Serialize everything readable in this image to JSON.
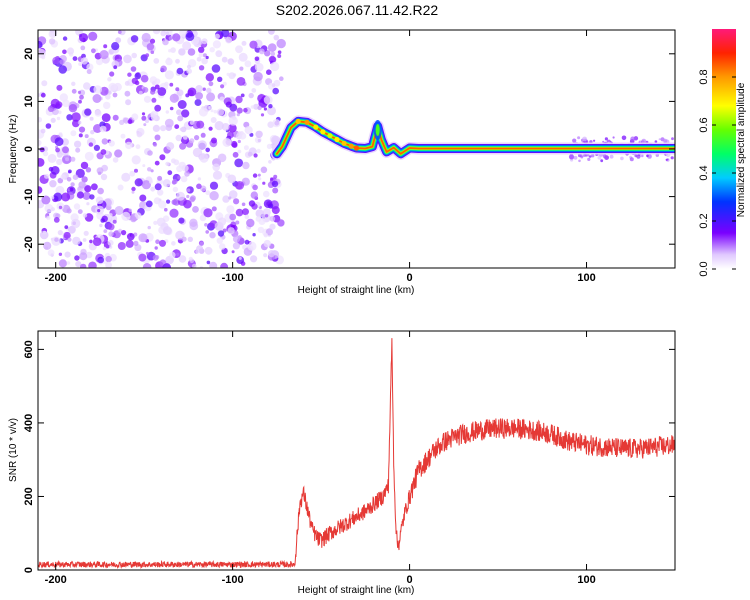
{
  "title": "S202.2026.067.11.42.R22",
  "chart_data": [
    {
      "type": "heatmap",
      "xlabel": "Height of straight line (km)",
      "ylabel": "Frequency (Hz)",
      "xlim": [
        -210,
        150
      ],
      "ylim": [
        -25,
        25
      ],
      "xticks": [
        -200,
        -100,
        0,
        100
      ],
      "yticks": [
        -20,
        -10,
        0,
        10,
        20
      ],
      "colorbar": {
        "label": "Normalized spectral amplitude",
        "range": [
          0,
          1
        ],
        "ticks": [
          "0.0",
          "0.2",
          "0.4",
          "0.6",
          "0.8"
        ]
      },
      "noise_region_x": [
        -210,
        -72
      ],
      "ridge": [
        {
          "x": -75,
          "y": -1.0,
          "amp": 0.25
        },
        {
          "x": -72,
          "y": 0.5,
          "amp": 0.35
        },
        {
          "x": -67,
          "y": 4.5,
          "amp": 0.45
        },
        {
          "x": -63,
          "y": 5.8,
          "amp": 0.75
        },
        {
          "x": -58,
          "y": 5.6,
          "amp": 0.8
        },
        {
          "x": -53,
          "y": 4.6,
          "amp": 0.7
        },
        {
          "x": -49,
          "y": 3.6,
          "amp": 0.7
        },
        {
          "x": -45,
          "y": 2.8,
          "amp": 0.65
        },
        {
          "x": -41,
          "y": 2.0,
          "amp": 0.7
        },
        {
          "x": -37,
          "y": 1.2,
          "amp": 0.75
        },
        {
          "x": -33,
          "y": 0.6,
          "amp": 0.8
        },
        {
          "x": -30,
          "y": 0.2,
          "amp": 0.85
        },
        {
          "x": -25,
          "y": 0.1,
          "amp": 0.85
        },
        {
          "x": -21,
          "y": 0.5,
          "amp": 0.5
        },
        {
          "x": -18,
          "y": 4.8,
          "amp": 0.45
        },
        {
          "x": -16,
          "y": 2.0,
          "amp": 0.5
        },
        {
          "x": -13,
          "y": -0.6,
          "amp": 0.55
        },
        {
          "x": -9,
          "y": 0.3,
          "amp": 0.6
        },
        {
          "x": -5,
          "y": -1.0,
          "amp": 0.5
        },
        {
          "x": 0,
          "y": 0.2,
          "amp": 0.6
        },
        {
          "x": 5,
          "y": 0.1,
          "amp": 0.85
        },
        {
          "x": 150,
          "y": 0.1,
          "amp": 0.85
        }
      ]
    },
    {
      "type": "line",
      "xlabel": "Height of straight line (km)",
      "ylabel": "SNR (10 * v/v)",
      "xlim": [
        -210,
        150
      ],
      "ylim": [
        0,
        650
      ],
      "xticks": [
        -200,
        -100,
        0,
        100
      ],
      "yticks": [
        0,
        200,
        400,
        600
      ],
      "color": "#e53935",
      "series": [
        {
          "x": [
            -210,
            -65,
            -62,
            -60,
            -57,
            -55,
            -52,
            -50,
            -45,
            -40,
            -35,
            -30,
            -25,
            -20,
            -15,
            -12,
            -10,
            -9,
            -8,
            -7,
            -6,
            -5,
            -3,
            0,
            5,
            10,
            15,
            20,
            25,
            30,
            40,
            50,
            60,
            70,
            80,
            90,
            100,
            110,
            120,
            130,
            140,
            150
          ],
          "y": [
            15,
            15,
            180,
            210,
            150,
            110,
            85,
            80,
            100,
            115,
            130,
            145,
            160,
            180,
            200,
            230,
            620,
            300,
            150,
            70,
            75,
            100,
            150,
            200,
            270,
            300,
            330,
            350,
            360,
            370,
            380,
            385,
            385,
            380,
            370,
            350,
            340,
            335,
            330,
            330,
            335,
            340
          ]
        }
      ]
    }
  ]
}
